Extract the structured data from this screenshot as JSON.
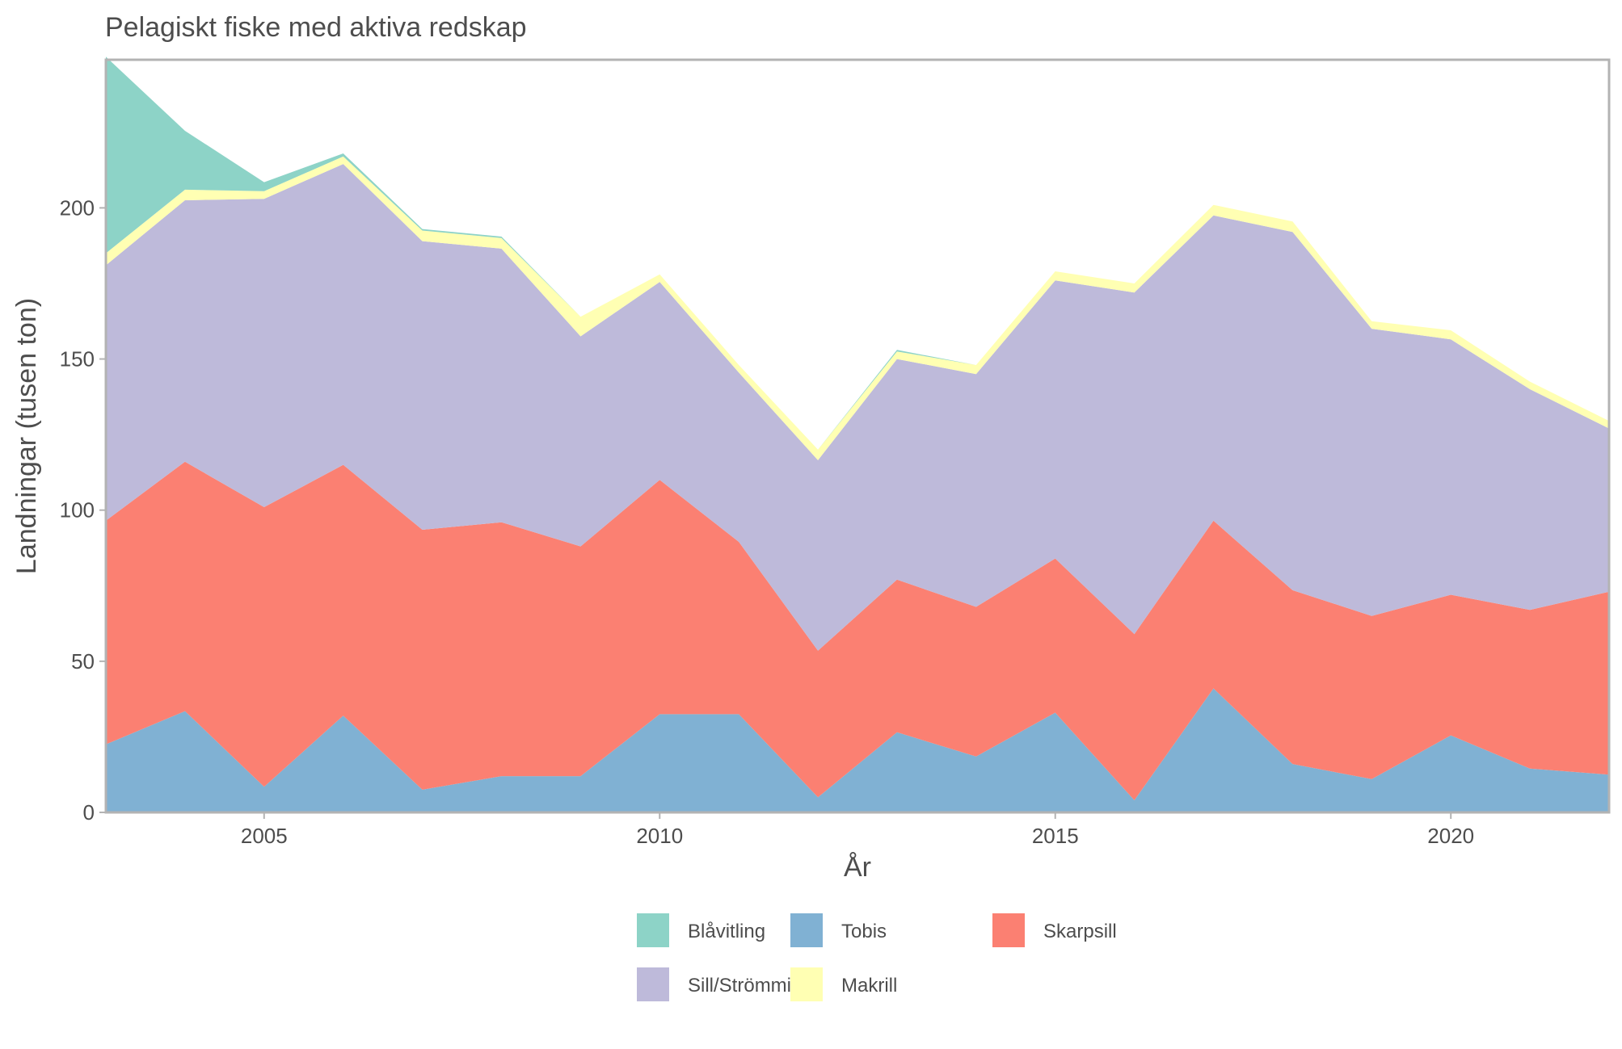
{
  "chart_data": {
    "type": "area",
    "stacked": true,
    "title": "Pelagiskt fiske med aktiva redskap",
    "xlabel": "År",
    "ylabel": "Landningar (tusen ton)",
    "xlim": [
      2003,
      2022
    ],
    "ylim": [
      0,
      249
    ],
    "x_ticks": [
      2005,
      2010,
      2015,
      2020
    ],
    "y_ticks": [
      0,
      50,
      100,
      150,
      200
    ],
    "grid": false,
    "legend_position": "bottom",
    "x": [
      2003,
      2004,
      2005,
      2006,
      2007,
      2008,
      2009,
      2010,
      2011,
      2012,
      2013,
      2014,
      2015,
      2016,
      2017,
      2018,
      2019,
      2020,
      2021,
      2022
    ],
    "series": [
      {
        "name": "Tobis",
        "color": "#80b1d3",
        "values": [
          22.5,
          33.5,
          8.5,
          32,
          7.5,
          12,
          12,
          32.5,
          32.5,
          5,
          26.5,
          18.5,
          33,
          4,
          41,
          16,
          11,
          25.5,
          14.5,
          12.5
        ]
      },
      {
        "name": "Skarpsill",
        "color": "#fb8072",
        "values": [
          74,
          82.5,
          92.5,
          83,
          86,
          84,
          76,
          77.5,
          57,
          48.5,
          50.5,
          49.5,
          51,
          55,
          55.5,
          57.5,
          54,
          46.5,
          52.5,
          60.5
        ]
      },
      {
        "name": "Sill/Strömming",
        "color": "#bebada",
        "values": [
          84.5,
          86.5,
          102,
          99.5,
          95.5,
          90.5,
          69.5,
          65.5,
          56,
          63,
          73,
          77,
          92,
          113,
          101,
          118.5,
          95,
          84.5,
          73,
          54
        ]
      },
      {
        "name": "Makrill",
        "color": "#ffffb3",
        "values": [
          4,
          3.5,
          2.5,
          2.5,
          3.5,
          3.5,
          6.5,
          2.5,
          2.5,
          3.5,
          2.5,
          3,
          3,
          3,
          3.5,
          3.5,
          2.5,
          3,
          2.5,
          2.5
        ]
      },
      {
        "name": "Blåvitling",
        "color": "#8dd3c7",
        "values": [
          65,
          19.5,
          3,
          1,
          0.5,
          0.5,
          0,
          0,
          0,
          0,
          0.5,
          0,
          0,
          0,
          0,
          0,
          0,
          0,
          0,
          0
        ]
      }
    ],
    "legend_order": [
      "Blåvitling",
      "Sill/Strömming",
      "Tobis",
      "Makrill",
      "Skarpsill"
    ]
  }
}
